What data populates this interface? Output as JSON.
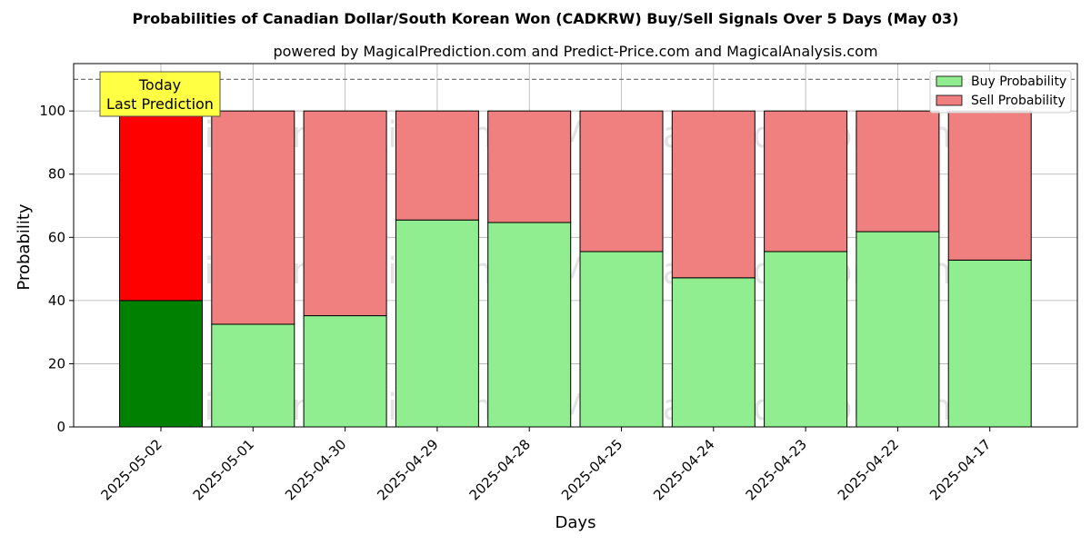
{
  "chart_data": {
    "type": "bar",
    "stacked": true,
    "title": "Probabilities of Canadian Dollar/South Korean Won (CADKRW) Buy/Sell Signals Over 5 Days (May 03)",
    "subtitle": "powered by MagicalPrediction.com and Predict-Price.com and MagicalAnalysis.com",
    "xlabel": "Days",
    "ylabel": "Probability",
    "ylim": [
      0,
      115
    ],
    "yticks": [
      0,
      20,
      40,
      60,
      80,
      100
    ],
    "reference_line": 110,
    "grid": true,
    "legend_position": "top-right",
    "categories": [
      "2025-05-02",
      "2025-05-01",
      "2025-04-30",
      "2025-04-29",
      "2025-04-28",
      "2025-04-25",
      "2025-04-24",
      "2025-04-23",
      "2025-04-22",
      "2025-04-17"
    ],
    "series": [
      {
        "name": "Buy Probability",
        "values": [
          40,
          32.5,
          35.2,
          65.5,
          64.7,
          55.5,
          47.2,
          55.5,
          61.8,
          52.8
        ],
        "color": "#90ee90",
        "highlight_color": "#008000"
      },
      {
        "name": "Sell Probability",
        "values": [
          60,
          67.5,
          64.8,
          34.5,
          35.3,
          44.5,
          52.8,
          44.5,
          38.2,
          47.2
        ],
        "color": "#f08080",
        "highlight_color": "#ff0000"
      }
    ],
    "highlight_index": 0,
    "annotation": {
      "lines": [
        "Today",
        "Last Prediction"
      ],
      "box_color": "#ffff44"
    },
    "watermarks": [
      "MagicalAnalysis.com",
      "MagicalPrediction.com"
    ]
  }
}
